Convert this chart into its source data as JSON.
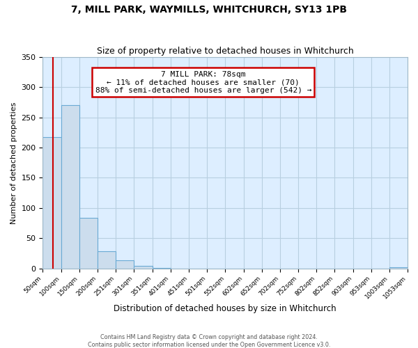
{
  "title": "7, MILL PARK, WAYMILLS, WHITCHURCH, SY13 1PB",
  "subtitle": "Size of property relative to detached houses in Whitchurch",
  "xlabel": "Distribution of detached houses by size in Whitchurch",
  "ylabel": "Number of detached properties",
  "bin_edges": [
    50,
    100,
    150,
    200,
    251,
    301,
    351,
    401,
    451,
    501,
    552,
    602,
    652,
    702,
    752,
    802,
    852,
    903,
    953,
    1003,
    1053
  ],
  "bar_heights": [
    217,
    271,
    84,
    28,
    13,
    4,
    1,
    0,
    0,
    0,
    0,
    0,
    0,
    0,
    0,
    0,
    0,
    0,
    0,
    2
  ],
  "bar_color": "#ccdded",
  "bar_edge_color": "#6aaad4",
  "ylim": [
    0,
    350
  ],
  "yticks": [
    0,
    50,
    100,
    150,
    200,
    250,
    300,
    350
  ],
  "tick_labels": [
    "50sqm",
    "100sqm",
    "150sqm",
    "200sqm",
    "251sqm",
    "301sqm",
    "351sqm",
    "401sqm",
    "451sqm",
    "501sqm",
    "552sqm",
    "602sqm",
    "652sqm",
    "702sqm",
    "752sqm",
    "802sqm",
    "852sqm",
    "903sqm",
    "953sqm",
    "1003sqm",
    "1053sqm"
  ],
  "property_size": 78,
  "annotation_title": "7 MILL PARK: 78sqm",
  "annotation_line1": "← 11% of detached houses are smaller (70)",
  "annotation_line2": "88% of semi-detached houses are larger (542) →",
  "annotation_box_color": "#ffffff",
  "annotation_box_edge": "#cc0000",
  "property_line_color": "#cc0000",
  "footer1": "Contains HM Land Registry data © Crown copyright and database right 2024.",
  "footer2": "Contains public sector information licensed under the Open Government Licence v3.0.",
  "background_color": "#ffffff",
  "axes_bg_color": "#ddeeff",
  "grid_color": "#b8cfe0"
}
